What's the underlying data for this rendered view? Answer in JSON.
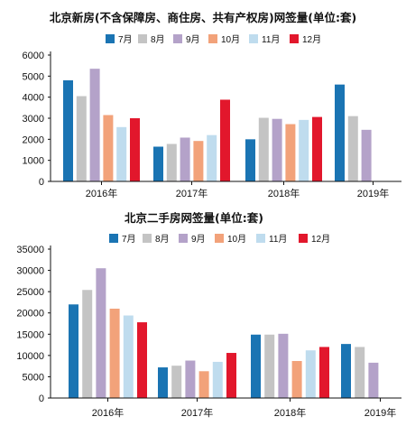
{
  "legend_colors": [
    "#1a74b3",
    "#c4c4c4",
    "#b4a2c9",
    "#f2a27a",
    "#bfdcee",
    "#e2172c"
  ],
  "chart_data": [
    {
      "type": "bar",
      "title": "北京新房(不含保障房、商住房、共有产权房)网签量(单位:套)",
      "categories": [
        "2016年",
        "2017年",
        "2018年",
        "2019年"
      ],
      "ylim": [
        0,
        6000
      ],
      "yticks": [
        "0",
        "1000",
        "2000",
        "3000",
        "4000",
        "5000",
        "6000"
      ],
      "ytick_values": [
        0,
        1000,
        2000,
        3000,
        4000,
        5000,
        6000
      ],
      "grid": false,
      "legend_position": "top-right",
      "series": [
        {
          "name": "7月",
          "values": [
            4800,
            1650,
            2000,
            4600
          ]
        },
        {
          "name": "8月",
          "values": [
            4050,
            1780,
            3020,
            3100
          ]
        },
        {
          "name": "9月",
          "values": [
            5350,
            2080,
            2970,
            2450
          ]
        },
        {
          "name": "10月",
          "values": [
            3150,
            1920,
            2720,
            null
          ]
        },
        {
          "name": "11月",
          "values": [
            2580,
            2200,
            2920,
            null
          ]
        },
        {
          "name": "12月",
          "values": [
            3000,
            3880,
            3060,
            null
          ]
        }
      ]
    },
    {
      "type": "bar",
      "title": "北京二手房网签量(单位:套)",
      "categories": [
        "2016年",
        "2017年",
        "2018年",
        "2019年"
      ],
      "ylim": [
        0,
        35000
      ],
      "yticks": [
        "0",
        "5000",
        "10000",
        "15000",
        "20000",
        "25000",
        "30000",
        "35000"
      ],
      "ytick_values": [
        0,
        5000,
        10000,
        15000,
        20000,
        25000,
        30000,
        35000
      ],
      "grid": false,
      "legend_position": "top-right",
      "series": [
        {
          "name": "7月",
          "values": [
            22000,
            7200,
            14900,
            12700
          ]
        },
        {
          "name": "8月",
          "values": [
            25400,
            7600,
            14900,
            12000
          ]
        },
        {
          "name": "9月",
          "values": [
            30500,
            8800,
            15100,
            8300
          ]
        },
        {
          "name": "10月",
          "values": [
            21000,
            6300,
            8700,
            null
          ]
        },
        {
          "name": "11月",
          "values": [
            19400,
            8500,
            11200,
            null
          ]
        },
        {
          "name": "12月",
          "values": [
            17800,
            10600,
            12000,
            null
          ]
        }
      ]
    }
  ]
}
